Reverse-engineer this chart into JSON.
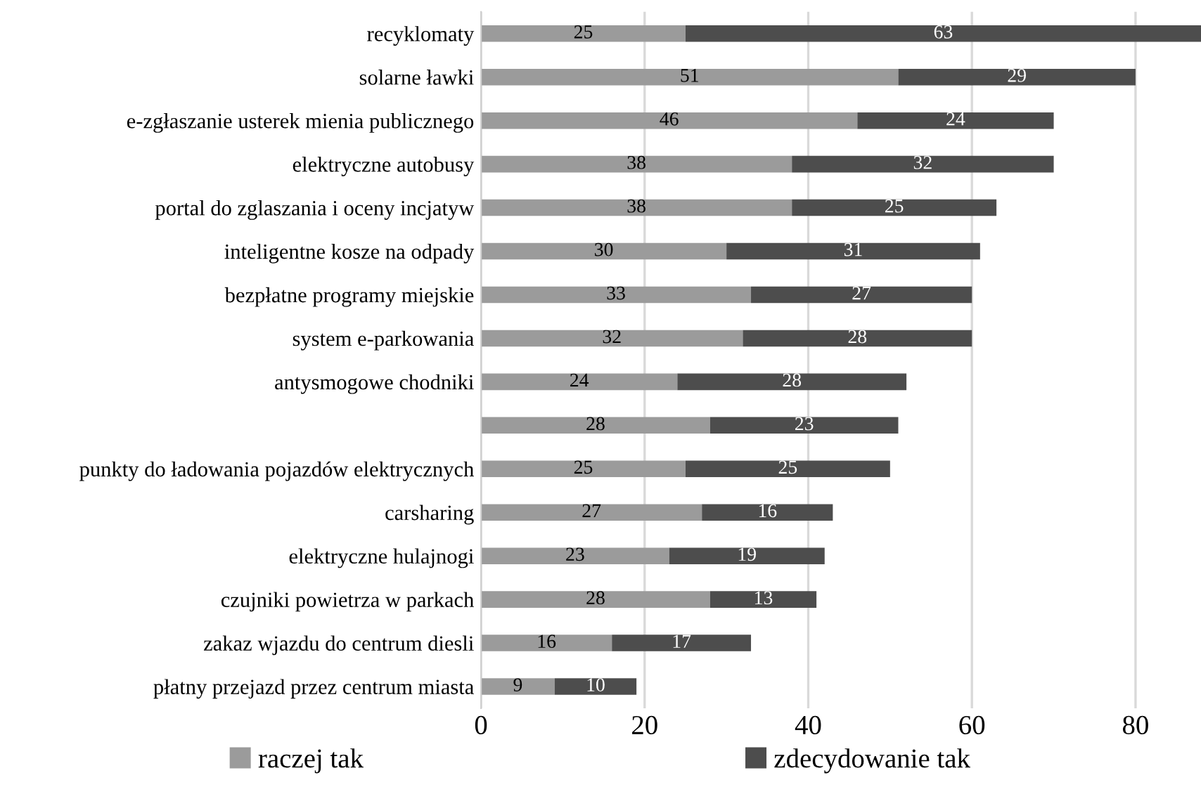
{
  "chart_data": {
    "type": "bar",
    "orientation": "horizontal",
    "stacked": true,
    "data_labels": true,
    "grid": "x",
    "legend": "bottom",
    "categories": [
      "recyklomaty",
      "solarne ławki",
      "e-zgłaszanie usterek mienia publicznego",
      "elektryczne autobusy",
      "portal do zglaszania i oceny incjatyw",
      "inteligentne kosze na odpady",
      "bezpłatne programy miejskie",
      "system e-parkowania",
      "antysmogowe chodniki",
      null,
      "punkty do ładowania pojazdów elektrycznych",
      "carsharing",
      "elektryczne hulajnogi",
      "czujniki powietrza w parkach",
      "zakaz wjazdu do centrum diesli",
      "płatny przejazd przez centrum miasta"
    ],
    "series": [
      {
        "name": "raczej tak",
        "color": "#9b9b9b",
        "values": [
          25,
          51,
          46,
          38,
          38,
          30,
          33,
          32,
          24,
          28,
          25,
          27,
          23,
          28,
          16,
          9
        ]
      },
      {
        "name": "zdecydowanie tak",
        "color": "#4d4d4d",
        "values": [
          63,
          29,
          24,
          32,
          25,
          31,
          27,
          28,
          28,
          23,
          25,
          16,
          19,
          13,
          17,
          10
        ]
      }
    ],
    "xlim": [
      0,
      88
    ],
    "xticks": [
      0,
      20,
      40,
      60,
      80
    ]
  }
}
